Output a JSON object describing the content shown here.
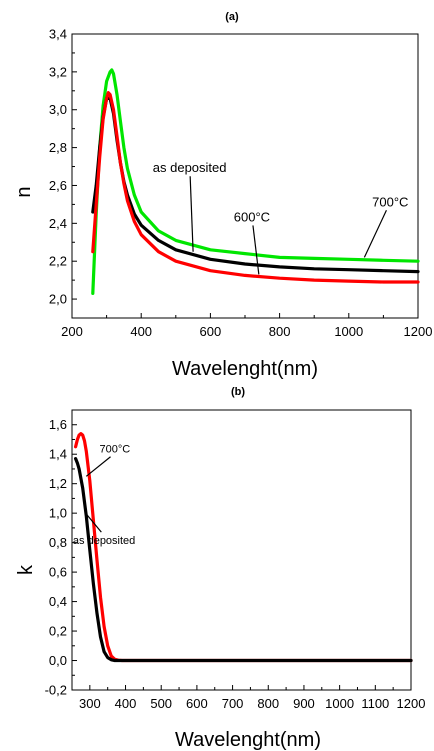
{
  "chart_data": [
    {
      "type": "line",
      "title": "(a)",
      "xlabel": "Wavelenght(nm)",
      "ylabel": "n",
      "xlim": [
        200,
        1200
      ],
      "ylim": [
        1.9,
        3.4
      ],
      "xticks": [
        200,
        400,
        600,
        800,
        1000,
        1200
      ],
      "xtick_labels": [
        "200",
        "400",
        "600",
        "800",
        "1000",
        "1200"
      ],
      "yticks": [
        2.0,
        2.2,
        2.4,
        2.6,
        2.8,
        3.0,
        3.2,
        3.4
      ],
      "ytick_labels": [
        "2,0",
        "2,2",
        "2,4",
        "2,6",
        "2,8",
        "3,0",
        "3,2",
        "3,4"
      ],
      "grid": false,
      "series": [
        {
          "color": "#00e600",
          "x": [
            260,
            270,
            280,
            290,
            300,
            310,
            315,
            320,
            330,
            340,
            350,
            360,
            380,
            400,
            450,
            500,
            600,
            700,
            800,
            900,
            1000,
            1100,
            1200
          ],
          "y": [
            2.03,
            2.45,
            2.8,
            3.02,
            3.15,
            3.2,
            3.21,
            3.19,
            3.08,
            2.94,
            2.8,
            2.69,
            2.55,
            2.46,
            2.36,
            2.31,
            2.26,
            2.24,
            2.22,
            2.215,
            2.21,
            2.205,
            2.2
          ]
        },
        {
          "color": "#000000",
          "x": [
            260,
            270,
            280,
            290,
            300,
            310,
            320,
            330,
            340,
            350,
            360,
            380,
            400,
            450,
            500,
            600,
            700,
            800,
            900,
            1000,
            1100,
            1200
          ],
          "y": [
            2.46,
            2.6,
            2.8,
            2.96,
            3.06,
            3.06,
            2.98,
            2.84,
            2.72,
            2.62,
            2.55,
            2.45,
            2.39,
            2.31,
            2.26,
            2.21,
            2.185,
            2.17,
            2.16,
            2.155,
            2.15,
            2.145
          ]
        },
        {
          "color": "#ff0000",
          "x": [
            260,
            270,
            280,
            290,
            300,
            305,
            310,
            320,
            330,
            340,
            350,
            360,
            380,
            400,
            450,
            500,
            600,
            700,
            800,
            900,
            1000,
            1100,
            1200
          ],
          "y": [
            2.25,
            2.5,
            2.75,
            2.95,
            3.06,
            3.09,
            3.08,
            3.0,
            2.86,
            2.72,
            2.61,
            2.52,
            2.41,
            2.34,
            2.25,
            2.2,
            2.15,
            2.125,
            2.11,
            2.1,
            2.095,
            2.09,
            2.09
          ]
        }
      ],
      "annotations": [
        {
          "text": "as deposited",
          "x": 540,
          "y": 2.67,
          "arrow_to": [
            550,
            2.25
          ]
        },
        {
          "text": "600°C",
          "x": 720,
          "y": 2.41,
          "arrow_to": [
            740,
            2.13
          ]
        },
        {
          "text": "700°C",
          "x": 1120,
          "y": 2.49,
          "arrow_to": [
            1045,
            2.22
          ]
        }
      ]
    },
    {
      "type": "line",
      "title": "(b)",
      "xlabel": "Wavelenght(nm)",
      "ylabel": "k",
      "xlim": [
        250,
        1200
      ],
      "ylim": [
        -0.2,
        1.7
      ],
      "xticks": [
        300,
        400,
        500,
        600,
        700,
        800,
        900,
        1000,
        1100,
        1200
      ],
      "xtick_labels": [
        "300",
        "400",
        "500",
        "600",
        "700",
        "800",
        "900",
        "1000",
        "1100",
        "1200"
      ],
      "yticks": [
        -0.2,
        0.0,
        0.2,
        0.4,
        0.6,
        0.8,
        1.0,
        1.2,
        1.4,
        1.6
      ],
      "ytick_labels": [
        "-0,2",
        "0,0",
        "0,2",
        "0,4",
        "0,6",
        "0,8",
        "1,0",
        "1,2",
        "1,4",
        "1,6"
      ],
      "grid": false,
      "series": [
        {
          "color": "#ff0000",
          "x": [
            260,
            265,
            270,
            275,
            280,
            285,
            290,
            300,
            310,
            320,
            330,
            340,
            350,
            360,
            370,
            380,
            390,
            400,
            500,
            600,
            800,
            1000,
            1200
          ],
          "y": [
            1.45,
            1.5,
            1.53,
            1.54,
            1.53,
            1.49,
            1.42,
            1.22,
            0.95,
            0.68,
            0.43,
            0.23,
            0.1,
            0.03,
            0.008,
            0.002,
            0.0,
            0.0,
            0.0,
            0.0,
            0.0,
            0.0,
            0.0
          ]
        },
        {
          "color": "#000000",
          "x": [
            260,
            265,
            270,
            280,
            290,
            300,
            310,
            320,
            330,
            340,
            350,
            360,
            370,
            380,
            400,
            500,
            800,
            1200
          ],
          "y": [
            1.37,
            1.34,
            1.3,
            1.17,
            0.98,
            0.75,
            0.52,
            0.32,
            0.16,
            0.06,
            0.02,
            0.005,
            0.0,
            0.0,
            0.0,
            0.0,
            0.0,
            0.0
          ]
        }
      ],
      "annotations": [
        {
          "text": "700°C",
          "x": 370,
          "y": 1.41,
          "arrow_to": [
            290,
            1.25
          ]
        },
        {
          "text": "as deposited",
          "x": 340,
          "y": 0.79,
          "arrow_to": [
            288,
            1.0
          ]
        }
      ]
    }
  ]
}
